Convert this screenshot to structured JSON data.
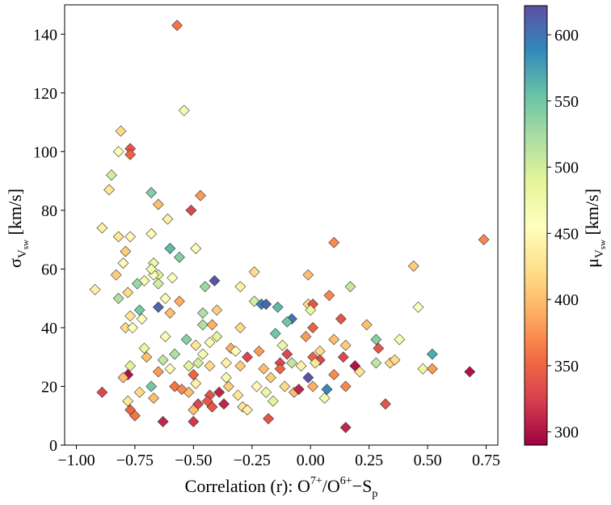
{
  "chart_data": {
    "type": "scatter",
    "title": "",
    "xlabel": {
      "prefix": "Correlation (r):  O",
      "sup1": "7+",
      "mid": "/O",
      "sup2": "6+",
      "dash": "−S",
      "sub": "p"
    },
    "ylabel": {
      "main": "σ",
      "sub": "V",
      "subsub": "sw",
      "unit": " [km/s]"
    },
    "colorbar_label": {
      "main": "μ",
      "sub": "V",
      "subsub": "sw",
      "unit": " [km/s]"
    },
    "xlim": [
      -1.05,
      0.8
    ],
    "ylim": [
      0,
      150
    ],
    "xticks": [
      -1.0,
      -0.75,
      -0.5,
      -0.25,
      0.0,
      0.25,
      0.5,
      0.75
    ],
    "xtick_labels": [
      "−1.00",
      "−0.75",
      "−0.50",
      "−0.25",
      "0.00",
      "0.25",
      "0.50",
      "0.75"
    ],
    "yticks": [
      0,
      20,
      40,
      60,
      80,
      100,
      120,
      140
    ],
    "ytick_labels": [
      "0",
      "20",
      "40",
      "60",
      "80",
      "100",
      "120",
      "140"
    ],
    "color_range": [
      290,
      622
    ],
    "cbar_ticks": [
      300,
      350,
      400,
      450,
      500,
      550,
      600
    ],
    "cbar_tick_labels": [
      "300",
      "350",
      "400",
      "450",
      "500",
      "550",
      "600"
    ],
    "colormap": "Spectral",
    "colormap_stops": [
      "#9e0142",
      "#d53e4f",
      "#f46d43",
      "#fdae61",
      "#fee08b",
      "#ffffbf",
      "#e6f598",
      "#abdda4",
      "#66c2a5",
      "#3288bd",
      "#5e4fa2"
    ],
    "marker": "diamond",
    "points": [
      [
        -0.57,
        143,
        360
      ],
      [
        -0.54,
        114,
        470
      ],
      [
        -0.81,
        107,
        420
      ],
      [
        -0.77,
        101,
        340
      ],
      [
        -0.77,
        99,
        350
      ],
      [
        -0.82,
        100,
        450
      ],
      [
        -0.85,
        92,
        500
      ],
      [
        -0.86,
        87,
        430
      ],
      [
        -0.68,
        86,
        540
      ],
      [
        -0.47,
        85,
        380
      ],
      [
        -0.65,
        82,
        400
      ],
      [
        -0.51,
        80,
        330
      ],
      [
        -0.61,
        77,
        440
      ],
      [
        -0.89,
        74,
        440
      ],
      [
        -0.68,
        72,
        450
      ],
      [
        -0.82,
        71,
        430
      ],
      [
        -0.77,
        71,
        450
      ],
      [
        0.74,
        70,
        370
      ],
      [
        0.1,
        69,
        370
      ],
      [
        -0.6,
        67,
        560
      ],
      [
        -0.49,
        67,
        460
      ],
      [
        -0.79,
        66,
        410
      ],
      [
        -0.56,
        64,
        540
      ],
      [
        -0.8,
        62,
        450
      ],
      [
        -0.67,
        62,
        480
      ],
      [
        -0.24,
        59,
        420
      ],
      [
        -0.65,
        58,
        490
      ],
      [
        -0.67,
        58,
        460
      ],
      [
        -0.83,
        58,
        410
      ],
      [
        -0.59,
        57,
        460
      ],
      [
        0.44,
        61,
        410
      ],
      [
        -0.68,
        60,
        470
      ],
      [
        -0.01,
        58,
        400
      ],
      [
        -0.71,
        56,
        470
      ],
      [
        -0.41,
        56,
        620
      ],
      [
        -0.74,
        55,
        530
      ],
      [
        -0.65,
        55,
        500
      ],
      [
        -0.3,
        54,
        440
      ],
      [
        -0.45,
        54,
        530
      ],
      [
        0.17,
        54,
        510
      ],
      [
        -0.92,
        53,
        440
      ],
      [
        -0.78,
        52,
        420
      ],
      [
        0.08,
        51,
        370
      ],
      [
        -0.82,
        50,
        520
      ],
      [
        -0.62,
        50,
        450
      ],
      [
        -0.56,
        49,
        390
      ],
      [
        -0.24,
        49,
        500
      ],
      [
        -0.65,
        47,
        610
      ],
      [
        -0.21,
        48,
        590
      ],
      [
        -0.19,
        48,
        610
      ],
      [
        -0.14,
        47,
        560
      ],
      [
        -0.01,
        48,
        420
      ],
      [
        0.01,
        48,
        340
      ],
      [
        -0.73,
        46,
        550
      ],
      [
        0.46,
        47,
        460
      ],
      [
        -0.4,
        46,
        410
      ],
      [
        -0.6,
        45,
        400
      ],
      [
        -0.46,
        45,
        520
      ],
      [
        0.0,
        46,
        480
      ],
      [
        -0.77,
        44,
        430
      ],
      [
        -0.72,
        43,
        460
      ],
      [
        -0.08,
        43,
        600
      ],
      [
        -0.1,
        42,
        550
      ],
      [
        0.13,
        43,
        340
      ],
      [
        -0.46,
        41,
        520
      ],
      [
        -0.42,
        41,
        390
      ],
      [
        -0.3,
        40,
        420
      ],
      [
        0.01,
        40,
        350
      ],
      [
        0.24,
        41,
        400
      ],
      [
        -0.79,
        40,
        420
      ],
      [
        -0.76,
        40,
        460
      ],
      [
        -0.02,
        37,
        380
      ],
      [
        -0.62,
        37,
        450
      ],
      [
        0.1,
        36,
        400
      ],
      [
        0.28,
        36,
        540
      ],
      [
        0.38,
        36,
        470
      ],
      [
        0.15,
        34,
        410
      ],
      [
        -0.53,
        36,
        540
      ],
      [
        -0.4,
        37,
        490
      ],
      [
        -0.15,
        38,
        550
      ],
      [
        -0.43,
        35,
        450
      ],
      [
        -0.49,
        34,
        430
      ],
      [
        -0.71,
        33,
        480
      ],
      [
        -0.34,
        33,
        390
      ],
      [
        -0.12,
        34,
        480
      ],
      [
        0.04,
        32,
        420
      ],
      [
        0.29,
        33,
        340
      ],
      [
        0.52,
        31,
        570
      ],
      [
        -0.58,
        31,
        520
      ],
      [
        -0.46,
        31,
        470
      ],
      [
        -0.22,
        32,
        380
      ],
      [
        0.01,
        30,
        350
      ],
      [
        -0.7,
        30,
        400
      ],
      [
        -0.32,
        32,
        460
      ],
      [
        -0.1,
        31,
        330
      ],
      [
        0.14,
        30,
        330
      ],
      [
        -0.63,
        29,
        510
      ],
      [
        -0.48,
        28,
        500
      ],
      [
        -0.27,
        30,
        330
      ],
      [
        -0.08,
        28,
        510
      ],
      [
        0.04,
        29,
        330
      ],
      [
        0.34,
        28,
        420
      ],
      [
        -0.77,
        27,
        490
      ],
      [
        -0.52,
        27,
        490
      ],
      [
        -0.36,
        28,
        440
      ],
      [
        -0.13,
        28,
        330
      ],
      [
        -0.2,
        26,
        400
      ],
      [
        0.28,
        28,
        510
      ],
      [
        0.36,
        29,
        420
      ],
      [
        0.48,
        26,
        480
      ],
      [
        0.52,
        26,
        380
      ],
      [
        0.68,
        25,
        300
      ],
      [
        -0.6,
        26,
        450
      ],
      [
        -0.43,
        27,
        420
      ],
      [
        -0.3,
        27,
        410
      ],
      [
        -0.04,
        27,
        440
      ],
      [
        0.02,
        28,
        430
      ],
      [
        0.21,
        25,
        430
      ],
      [
        -0.78,
        24,
        300
      ],
      [
        -0.65,
        25,
        380
      ],
      [
        -0.5,
        24,
        350
      ],
      [
        -0.36,
        23,
        470
      ],
      [
        -0.17,
        23,
        410
      ],
      [
        -0.01,
        23,
        620
      ],
      [
        0.1,
        24,
        370
      ],
      [
        -0.8,
        23,
        400
      ],
      [
        -0.68,
        20,
        550
      ],
      [
        -0.58,
        20,
        360
      ],
      [
        -0.49,
        21,
        440
      ],
      [
        -0.35,
        20,
        410
      ],
      [
        -0.23,
        20,
        450
      ],
      [
        -0.11,
        20,
        420
      ],
      [
        0.01,
        20,
        390
      ],
      [
        0.15,
        20,
        370
      ],
      [
        -0.89,
        18,
        330
      ],
      [
        -0.73,
        18,
        420
      ],
      [
        -0.52,
        18,
        400
      ],
      [
        -0.43,
        17,
        340
      ],
      [
        -0.31,
        17,
        430
      ],
      [
        -0.19,
        18,
        480
      ],
      [
        -0.07,
        18,
        400
      ],
      [
        0.06,
        16,
        470
      ],
      [
        -0.78,
        15,
        430
      ],
      [
        -0.67,
        16,
        400
      ],
      [
        -0.48,
        14,
        330
      ],
      [
        -0.37,
        14,
        310
      ],
      [
        -0.29,
        13,
        430
      ],
      [
        -0.16,
        15,
        490
      ],
      [
        -0.77,
        12,
        350
      ],
      [
        -0.5,
        12,
        400
      ],
      [
        -0.42,
        13,
        340
      ],
      [
        0.32,
        14,
        340
      ],
      [
        -0.75,
        10,
        360
      ],
      [
        -0.63,
        8,
        310
      ],
      [
        -0.5,
        8,
        320
      ],
      [
        -0.18,
        9,
        340
      ],
      [
        0.15,
        6,
        310
      ],
      [
        0.07,
        19,
        590
      ],
      [
        0.19,
        27,
        300
      ],
      [
        -0.05,
        19,
        310
      ],
      [
        -0.27,
        12,
        440
      ],
      [
        -0.39,
        18,
        310
      ],
      [
        -0.44,
        15,
        340
      ],
      [
        -0.55,
        19,
        370
      ],
      [
        -0.13,
        26,
        350
      ]
    ]
  }
}
